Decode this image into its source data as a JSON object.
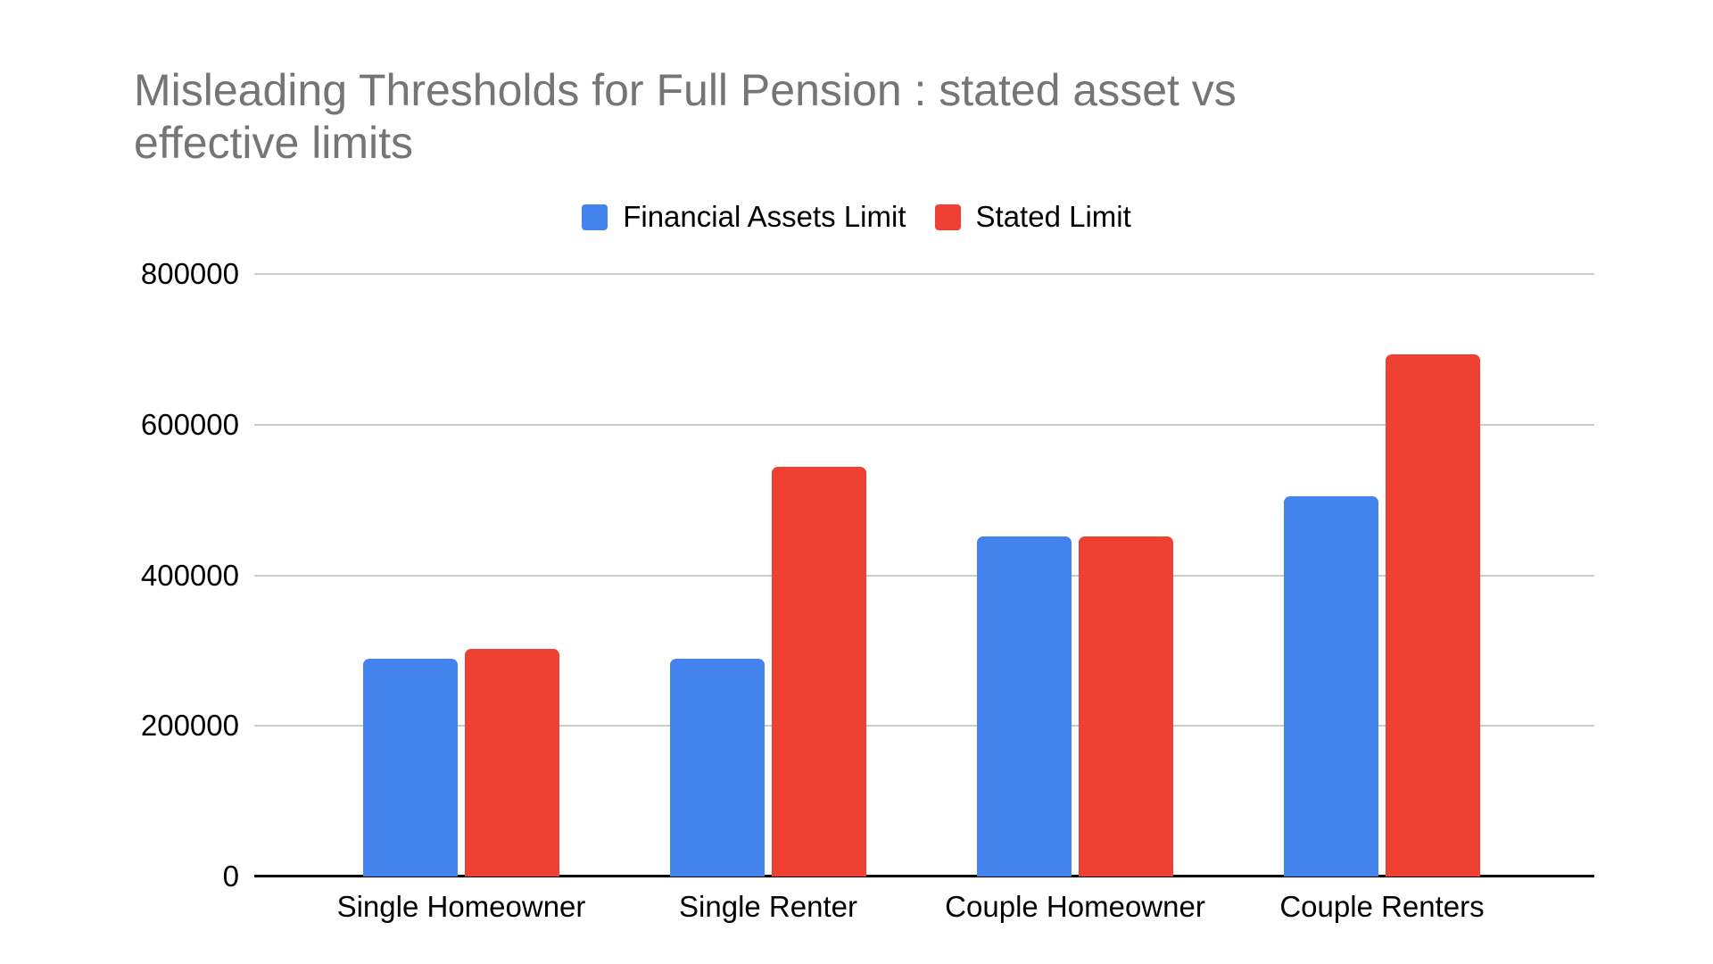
{
  "header": {
    "title": "Misleading Thresholds for Full Pension : stated asset vs effective limits",
    "title_lines": [
      "Misleading Thresholds for Full Pension : stated asset vs",
      "effective limits"
    ]
  },
  "chart_data": {
    "type": "bar",
    "title": "Misleading Thresholds for Full Pension : stated asset vs effective limits",
    "categories": [
      "Single Homeowner",
      "Single Renter",
      "Couple Homeowner",
      "Couple Renters"
    ],
    "series": [
      {
        "name": "Financial Assets Limit",
        "color": "#4383EE",
        "values": [
          289500,
          289500,
          451500,
          505000
        ]
      },
      {
        "name": "Stated Limit",
        "color": "#EE4134",
        "values": [
          301750,
          543750,
          451500,
          693500
        ]
      }
    ],
    "xlabel": "",
    "ylabel": "",
    "ylim": [
      0,
      800000
    ],
    "y_ticks": [
      0,
      200000,
      400000,
      600000,
      800000
    ],
    "y_tick_labels": [
      "0",
      "200000",
      "400000",
      "600000",
      "800000"
    ],
    "grid": true,
    "legend_position": "top",
    "background_color": "#ffffff",
    "gridline_color": "#cccccc",
    "axis_color": "#000000",
    "title_color": "#757575"
  }
}
